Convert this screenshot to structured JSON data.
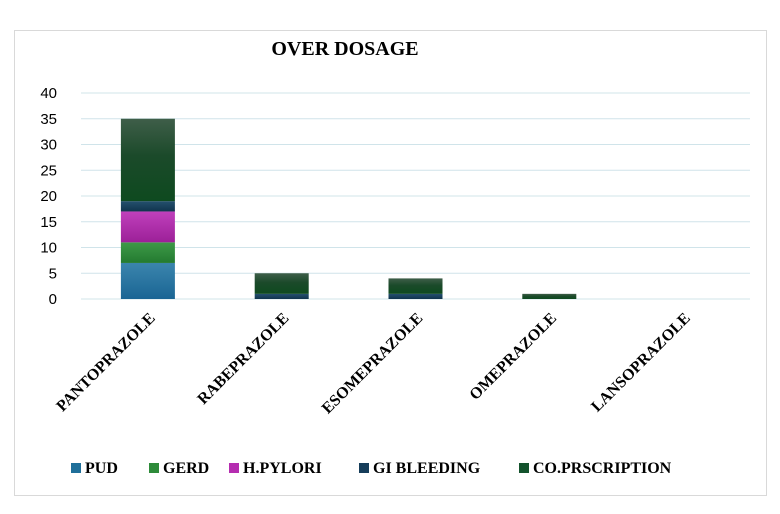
{
  "chart_data": {
    "type": "bar",
    "stacked": true,
    "title": "OVER DOSAGE",
    "xlabel": "",
    "ylabel": "",
    "ylim": [
      0,
      40
    ],
    "yticks": [
      0,
      5,
      10,
      15,
      20,
      25,
      30,
      35,
      40
    ],
    "grid": true,
    "legend": "bottom",
    "categories": [
      "PANTOPRAZOLE",
      "RABEPRAZOLE",
      "ESOMEPRAZOLE",
      "OMEPRAZOLE",
      "LANSOPRAZOLE"
    ],
    "series": [
      {
        "name": "PUD",
        "color": "#1f6f9a",
        "values": [
          7,
          0,
          0,
          0,
          0
        ]
      },
      {
        "name": "GERD",
        "color": "#2e8b3a",
        "values": [
          4,
          0,
          0,
          0,
          0
        ]
      },
      {
        "name": "H.PYLORI",
        "color": "#b52db0",
        "values": [
          6,
          0,
          0,
          0,
          0
        ]
      },
      {
        "name": "GI BLEEDING",
        "color": "#163d5a",
        "values": [
          2,
          1,
          1,
          0,
          0
        ]
      },
      {
        "name": "CO.PRSCRIPTION",
        "color": "#14532d",
        "values": [
          16,
          4,
          3,
          1,
          0
        ]
      }
    ]
  }
}
